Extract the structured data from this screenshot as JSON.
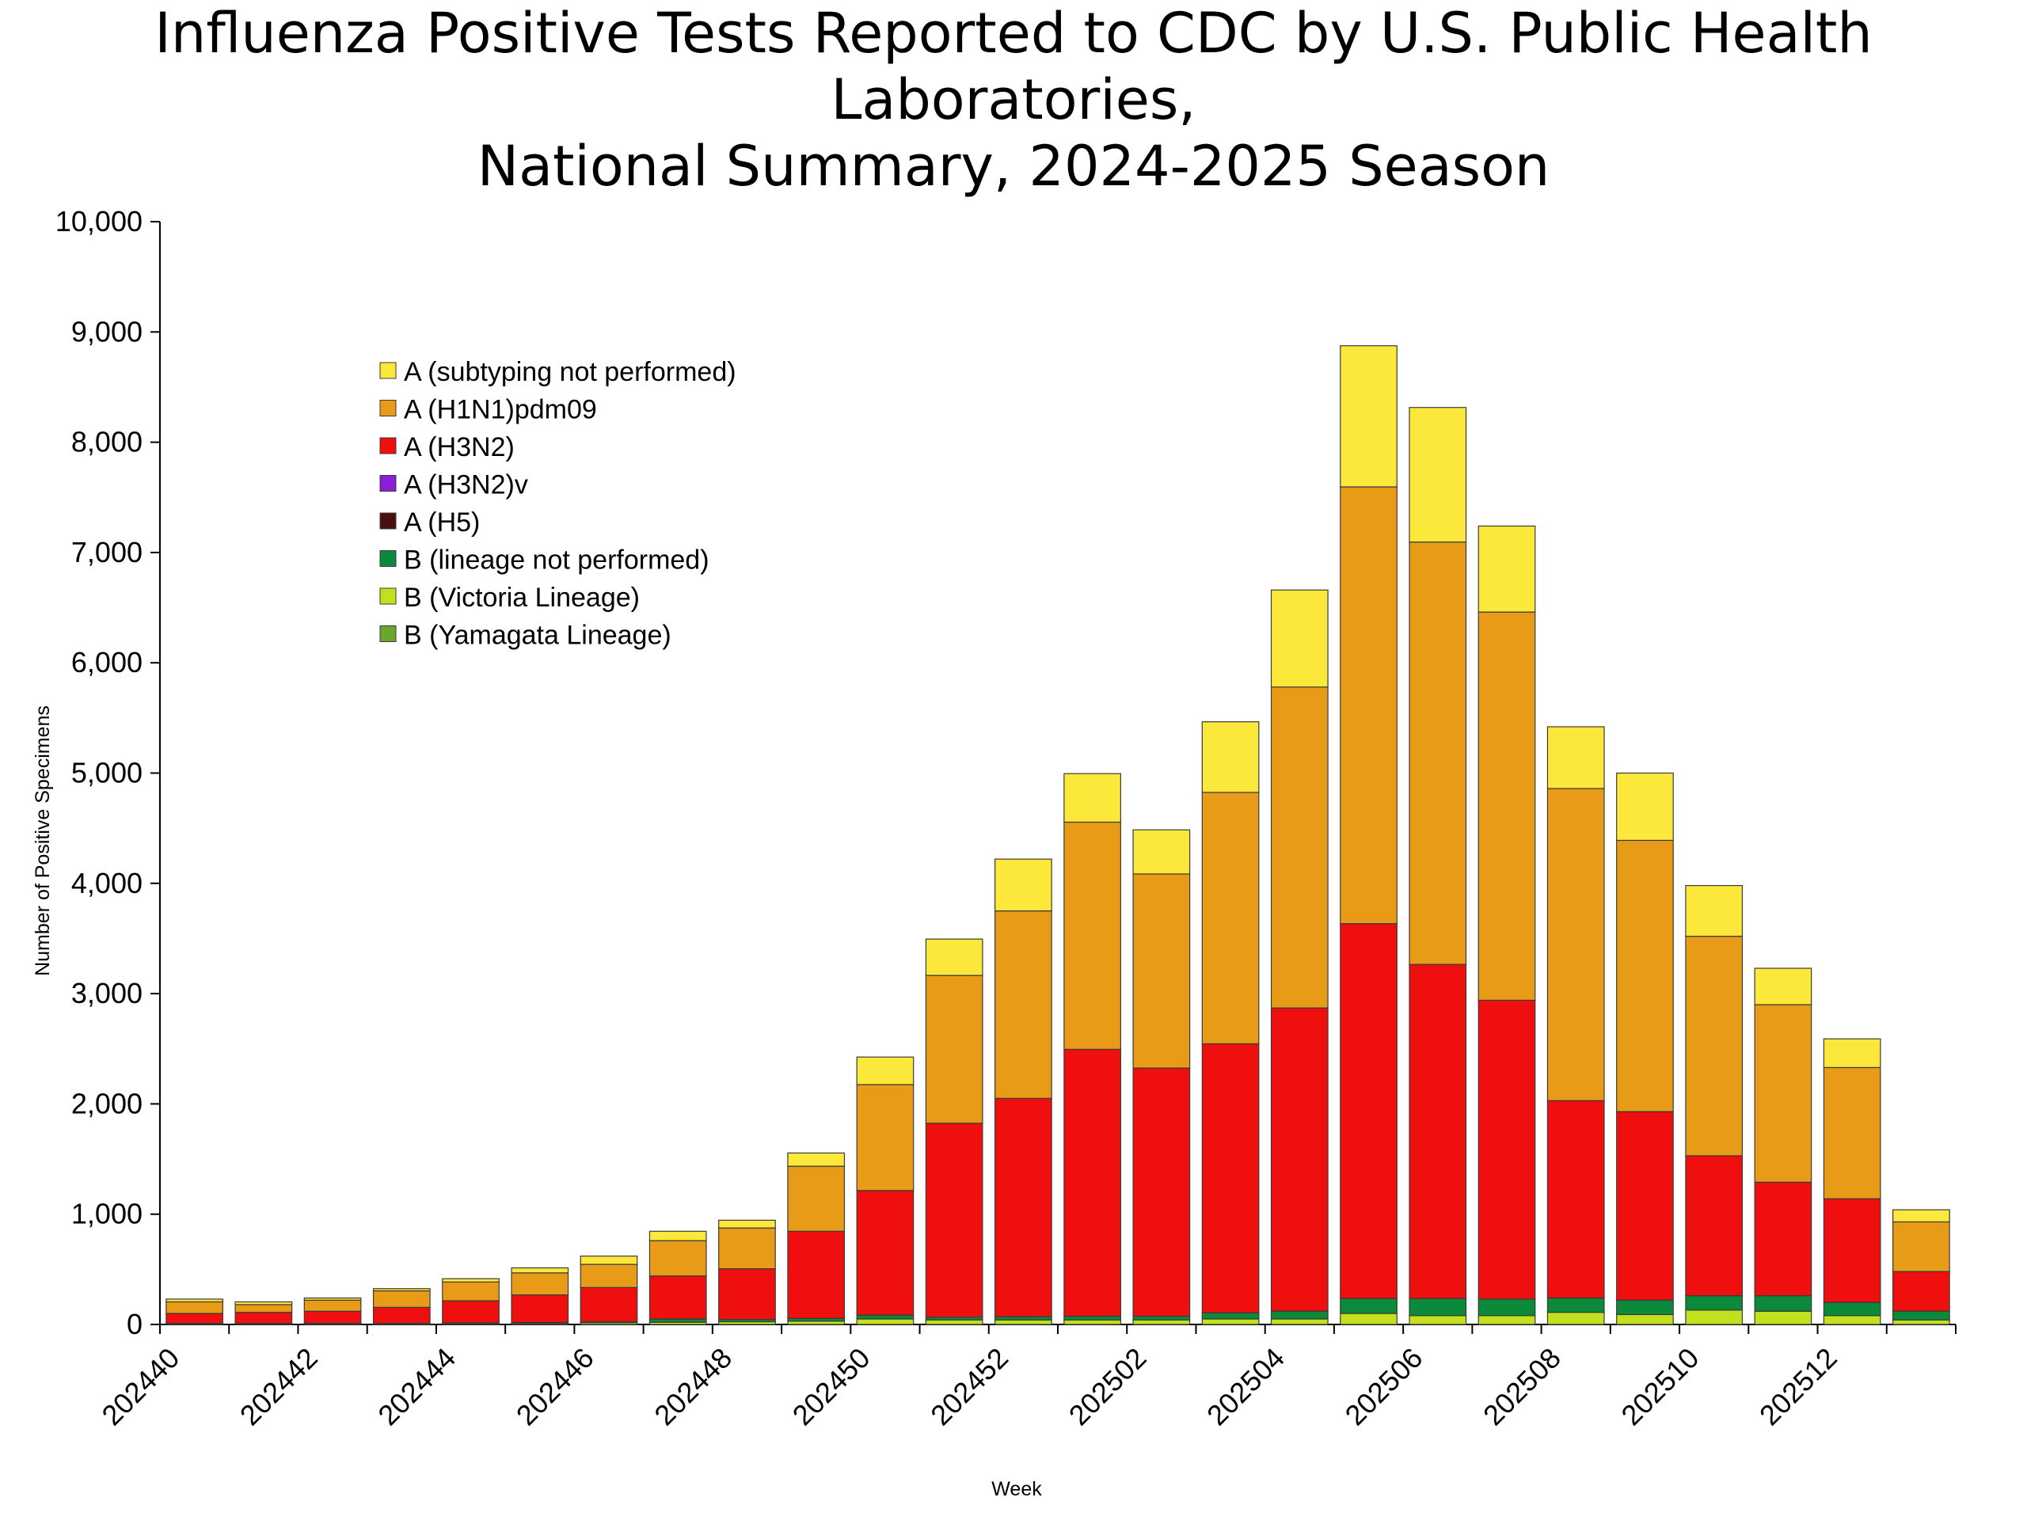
{
  "chart_data": {
    "type": "bar",
    "stacked": true,
    "title_lines": [
      "Influenza Positive Tests Reported to CDC by U.S. Public Health Laboratories,",
      "National Summary, 2024-2025 Season"
    ],
    "xlabel": "Week",
    "ylabel": "Number of Positive Specimens",
    "ylim": [
      0,
      10000
    ],
    "yticks": [
      0,
      1000,
      2000,
      3000,
      4000,
      5000,
      6000,
      7000,
      8000,
      9000,
      10000
    ],
    "ytick_labels": [
      "0",
      "1,000",
      "2,000",
      "3,000",
      "4,000",
      "5,000",
      "6,000",
      "7,000",
      "8,000",
      "9,000",
      "10,000"
    ],
    "categories": [
      "202440",
      "202441",
      "202442",
      "202443",
      "202444",
      "202445",
      "202446",
      "202447",
      "202448",
      "202449",
      "202450",
      "202451",
      "202452",
      "202501",
      "202502",
      "202503",
      "202504",
      "202505",
      "202506",
      "202507",
      "202508",
      "202509",
      "202510",
      "202511",
      "202512",
      "202513"
    ],
    "xtick_labels": [
      "202440",
      "202442",
      "202444",
      "202446",
      "202448",
      "202450",
      "202452",
      "202502",
      "202504",
      "202506",
      "202508",
      "202510",
      "202512"
    ],
    "legend_position": "upper-left",
    "series": [
      {
        "name": "B (Yamagata Lineage)",
        "color": "#6aa62c",
        "values": [
          0,
          0,
          0,
          0,
          0,
          0,
          0,
          0,
          0,
          0,
          0,
          0,
          0,
          0,
          0,
          0,
          0,
          0,
          0,
          0,
          0,
          0,
          0,
          0,
          0,
          0
        ]
      },
      {
        "name": "B (Victoria Lineage)",
        "color": "#c2e01e",
        "values": [
          5,
          5,
          5,
          5,
          8,
          10,
          15,
          20,
          25,
          30,
          50,
          40,
          40,
          40,
          40,
          50,
          50,
          100,
          80,
          80,
          110,
          90,
          130,
          120,
          80,
          40
        ]
      },
      {
        "name": "B (lineage not performed)",
        "color": "#0a8a3a",
        "values": [
          5,
          5,
          5,
          5,
          7,
          8,
          10,
          30,
          20,
          25,
          35,
          25,
          30,
          35,
          35,
          55,
          70,
          135,
          155,
          150,
          130,
          130,
          130,
          140,
          120,
          80
        ]
      },
      {
        "name": "A (H5)",
        "color": "#4a0f0f",
        "values": [
          0,
          0,
          0,
          0,
          0,
          0,
          0,
          0,
          0,
          0,
          0,
          0,
          0,
          0,
          0,
          0,
          0,
          0,
          0,
          0,
          0,
          0,
          0,
          0,
          0,
          0
        ]
      },
      {
        "name": "A (H3N2)v",
        "color": "#8a1fd6",
        "values": [
          0,
          0,
          0,
          0,
          0,
          0,
          0,
          0,
          0,
          0,
          0,
          0,
          0,
          0,
          0,
          0,
          0,
          0,
          0,
          0,
          0,
          0,
          0,
          0,
          0,
          0
        ]
      },
      {
        "name": "A (H3N2)",
        "color": "#f00f0f",
        "values": [
          90,
          100,
          110,
          145,
          200,
          250,
          310,
          390,
          460,
          790,
          1130,
          1760,
          1980,
          2420,
          2250,
          2440,
          2750,
          3400,
          3030,
          2710,
          1790,
          1710,
          1270,
          1030,
          940,
          360
        ]
      },
      {
        "name": "A (H1N1)pdm09",
        "color": "#e89b17",
        "values": [
          105,
          70,
          100,
          150,
          170,
          200,
          210,
          320,
          370,
          590,
          960,
          1340,
          1700,
          2060,
          1760,
          2280,
          2910,
          3960,
          3830,
          3520,
          2830,
          2460,
          1990,
          1610,
          1190,
          450
        ]
      },
      {
        "name": "A (subtyping not performed)",
        "color": "#fbe83a",
        "values": [
          25,
          25,
          20,
          20,
          30,
          45,
          75,
          85,
          70,
          120,
          250,
          330,
          470,
          440,
          400,
          640,
          880,
          1280,
          1220,
          780,
          560,
          610,
          460,
          330,
          260,
          110
        ]
      }
    ],
    "legend_order": [
      "A (subtyping not performed)",
      "A (H1N1)pdm09",
      "A (H3N2)",
      "A (H3N2)v",
      "A (H5)",
      "B (lineage not performed)",
      "B (Victoria Lineage)",
      "B (Yamagata Lineage)"
    ]
  }
}
